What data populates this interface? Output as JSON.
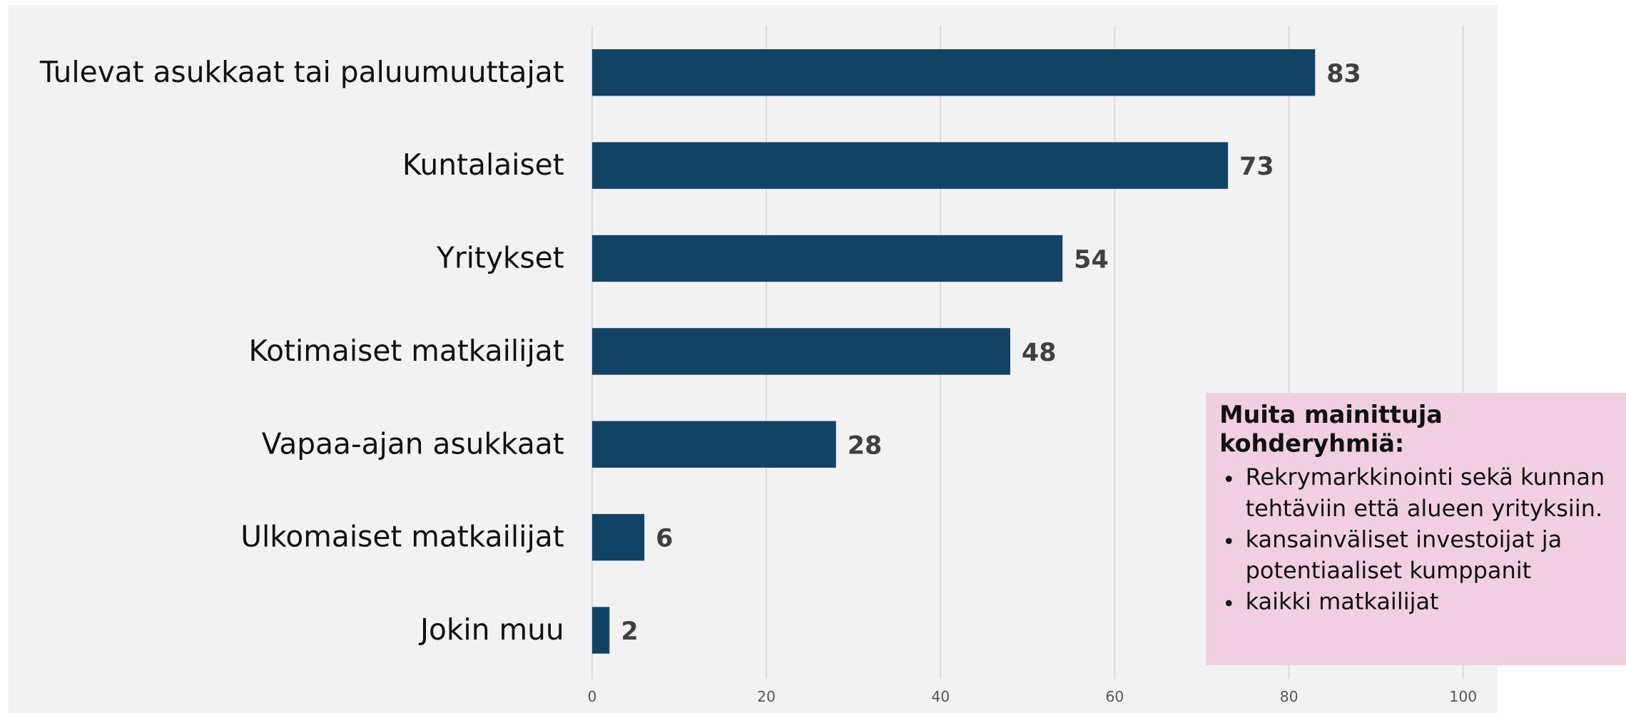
{
  "chart_data": {
    "type": "bar",
    "orientation": "horizontal",
    "categories": [
      "Tulevat asukkaat tai paluumuuttajat",
      "Kuntalaiset",
      "Yritykset",
      "Kotimaiset matkailijat",
      "Vapaa-ajan asukkaat",
      "Ulkomaiset matkailijat",
      "Jokin muu"
    ],
    "values": [
      83,
      73,
      54,
      48,
      28,
      6,
      2
    ],
    "color": "#124264",
    "xlim": [
      0,
      100
    ],
    "xticks": [
      0,
      20,
      40,
      60,
      80,
      100
    ],
    "grid": true
  },
  "annotation": {
    "title": "Muita mainittuja kohderyhmiä:",
    "items": [
      "Rekrymarkkinointi sekä kunnan tehtäviin että alueen yrityksiin.",
      "kansainväliset investoijat ja potentiaaliset kumppanit",
      "kaikki matkailijat"
    ]
  }
}
